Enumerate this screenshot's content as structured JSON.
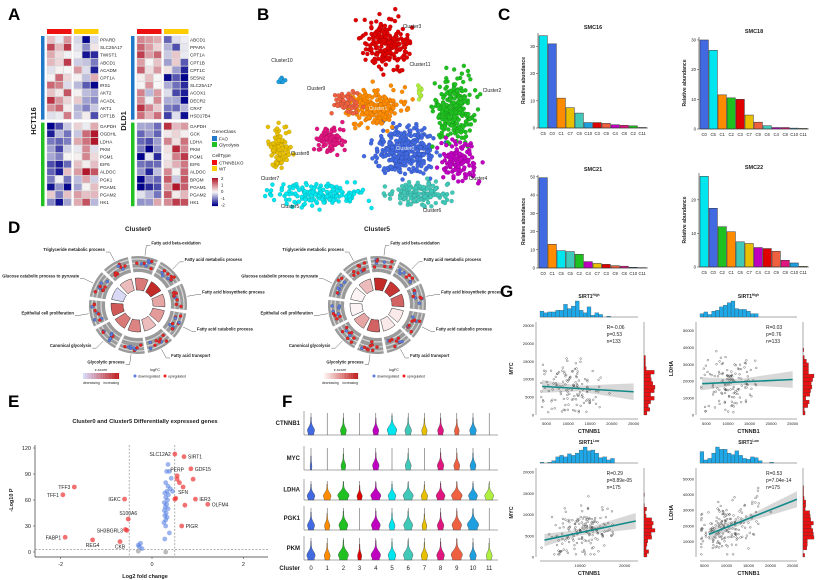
{
  "panels": {
    "A": "A",
    "B": "B",
    "C": "C",
    "D": "D",
    "E": "E",
    "F": "F",
    "G": "G"
  },
  "heatmap": {
    "blocks": [
      {
        "cell_line": "HCT116",
        "genes": [
          "PPARD",
          "SLC25A17",
          "TWIST1",
          "ABCD1",
          "ACADM",
          "CPT1A",
          "IRS1",
          "AKT2",
          "ACADL",
          "AKT1",
          "CPT1B",
          "GAPDH",
          "OGDHL",
          "LDHA",
          "PKM",
          "PGM1",
          "EIF6",
          "ALDOC",
          "PGK1",
          "PGAM1",
          "PGAM2",
          "HK1"
        ]
      },
      {
        "cell_line": "DLD1",
        "genes": [
          "ABCD1",
          "PPARA",
          "CPT1A",
          "CPT1B",
          "CPT1C",
          "SESN2",
          "SLC25A17",
          "ACOX1",
          "DECR2",
          "CRAT",
          "HSD17B4",
          "GAPDH",
          "GCK",
          "LDHA",
          "PKM",
          "PGM1",
          "EIF6",
          "ALDOC",
          "BPGM",
          "PGAM1",
          "PGAM2",
          "HK1"
        ]
      }
    ],
    "gene_class_title": "GeneClass",
    "gene_classes": [
      {
        "name": "FAO",
        "color": "#1f78c8"
      },
      {
        "name": "Glycolysis",
        "color": "#22c022"
      }
    ],
    "cell_type_title": "CellType",
    "cell_types": [
      {
        "name": "CTNNB1KO",
        "color": "#ee1111"
      },
      {
        "name": "WT",
        "color": "#ffcc00"
      }
    ],
    "scale_ticks": [
      "2",
      "1",
      "0",
      "-1",
      "-2"
    ],
    "colors": {
      "high": "#b2182b",
      "mid": "#f7f7f7",
      "low": "#00008b"
    }
  },
  "umap": {
    "clusters": [
      {
        "id": 0,
        "label": "Cluster0",
        "color": "#4169e1"
      },
      {
        "id": 1,
        "label": "Cluster1",
        "color": "#ff8c00"
      },
      {
        "id": 2,
        "label": "Cluster2",
        "color": "#1fc01f"
      },
      {
        "id": 3,
        "label": "Cluster3",
        "color": "#e00000"
      },
      {
        "id": 4,
        "label": "Cluster4",
        "color": "#c000c0"
      },
      {
        "id": 5,
        "label": "Cluster5",
        "color": "#00e5ee"
      },
      {
        "id": 6,
        "label": "Cluster6",
        "color": "#40c8b8"
      },
      {
        "id": 7,
        "label": "Cluster7",
        "color": "#e8c000"
      },
      {
        "id": 8,
        "label": "Cluster8",
        "color": "#e0157f"
      },
      {
        "id": 9,
        "label": "Cluster9",
        "color": "#ee6040"
      },
      {
        "id": 10,
        "label": "Cluster10",
        "color": "#1e9fe0"
      },
      {
        "id": 11,
        "label": "Cluster11",
        "color": "#b0f040"
      }
    ]
  },
  "chart_data": [
    {
      "type": "bar",
      "title": "SMC16",
      "ylabel": "Relative abundance",
      "ylim": [
        0,
        35
      ],
      "yticks": [
        0,
        10,
        20,
        30
      ],
      "categories": [
        "C5",
        "C0",
        "C1",
        "C7",
        "C6",
        "C10",
        "C3",
        "C9",
        "C4",
        "C8",
        "C2",
        "C11"
      ],
      "values": [
        34,
        31,
        11,
        7.5,
        5.5,
        2,
        2,
        1.7,
        1.2,
        1,
        0.8,
        0.2
      ]
    },
    {
      "type": "bar",
      "title": "SMC18",
      "ylabel": "Relative abundance",
      "ylim": [
        0,
        31
      ],
      "yticks": [
        0,
        10,
        20,
        30
      ],
      "categories": [
        "C0",
        "C5",
        "C1",
        "C2",
        "C3",
        "C7",
        "C9",
        "C6",
        "C4",
        "C8",
        "C10",
        "C11"
      ],
      "values": [
        30,
        26.5,
        11.5,
        10.5,
        10,
        4.7,
        2.3,
        1.1,
        0.5,
        0.5,
        0.3,
        0.2
      ]
    },
    {
      "type": "bar",
      "title": "SMC21",
      "ylabel": "Relative abundance",
      "ylim": [
        0,
        51
      ],
      "yticks": [
        0,
        10,
        20,
        30,
        40,
        50
      ],
      "categories": [
        "C0",
        "C1",
        "C5",
        "C6",
        "C2",
        "C4",
        "C7",
        "C3",
        "C9",
        "C8",
        "C10",
        "C11"
      ],
      "values": [
        49.5,
        13,
        9.5,
        9,
        7.5,
        3.5,
        2.5,
        2,
        1.3,
        1,
        0.4,
        0.2
      ]
    },
    {
      "type": "bar",
      "title": "SMC22",
      "ylabel": "Relative abundance",
      "ylim": [
        0,
        28
      ],
      "yticks": [
        0,
        10,
        20
      ],
      "categories": [
        "C5",
        "C0",
        "C2",
        "C1",
        "C6",
        "C7",
        "C4",
        "C3",
        "C9",
        "C8",
        "C10",
        "C11"
      ],
      "values": [
        27,
        17.5,
        12,
        10.5,
        7.5,
        7,
        5.8,
        5.5,
        4.7,
        2,
        1.2,
        0.2
      ]
    },
    {
      "type": "scatter",
      "title": "Cluster0 and Cluster5 Differentially expressed genes",
      "xlabel": "Log2 fold change",
      "ylabel": "-Log10 P",
      "xlim": [
        -2.5,
        2.5
      ],
      "ylim": [
        0,
        120
      ],
      "xticks": [
        -2,
        0,
        2
      ],
      "yticks": [
        0,
        30,
        60,
        90,
        120
      ],
      "labeled_points": [
        {
          "gene": "TFF3",
          "x": -1.7,
          "y": 75
        },
        {
          "gene": "TFF1",
          "x": -1.95,
          "y": 66
        },
        {
          "gene": "IGKC",
          "x": -0.6,
          "y": 61
        },
        {
          "gene": "S100A6",
          "x": -0.52,
          "y": 38
        },
        {
          "gene": "SH3BGRL3",
          "x": -0.55,
          "y": 25
        },
        {
          "gene": "FABP1",
          "x": -1.9,
          "y": 17
        },
        {
          "gene": "REG4",
          "x": -1.3,
          "y": 14
        },
        {
          "gene": "CKB",
          "x": -0.7,
          "y": 12
        },
        {
          "gene": "SLC12A2",
          "x": 0.5,
          "y": 113
        },
        {
          "gene": "SIRT1",
          "x": 0.7,
          "y": 110
        },
        {
          "gene": "GDF15",
          "x": 0.85,
          "y": 96
        },
        {
          "gene": "PERP",
          "x": 0.55,
          "y": 88
        },
        {
          "gene": "SFN",
          "x": 0.68,
          "y": 75
        },
        {
          "gene": "IER3",
          "x": 0.95,
          "y": 61
        },
        {
          "gene": "OLFM4",
          "x": 1.22,
          "y": 55
        },
        {
          "gene": "PIGR",
          "x": 0.65,
          "y": 30
        }
      ],
      "other_up": [
        [
          0.55,
          84
        ],
        [
          0.6,
          80
        ],
        [
          0.52,
          62
        ],
        [
          0.72,
          54
        ],
        [
          0.9,
          84
        ],
        [
          -0.58,
          26
        ],
        [
          0.5,
          61
        ]
      ],
      "other_down": [
        [
          0.35,
          101
        ],
        [
          0.38,
          93
        ],
        [
          0.32,
          93
        ],
        [
          0.42,
          85
        ],
        [
          0.3,
          80
        ],
        [
          0.35,
          76
        ],
        [
          0.4,
          73
        ],
        [
          0.33,
          70
        ],
        [
          0.45,
          70
        ],
        [
          0.28,
          68
        ],
        [
          0.36,
          66
        ],
        [
          0.3,
          63
        ],
        [
          0.34,
          60
        ],
        [
          0.27,
          57
        ],
        [
          0.32,
          55
        ],
        [
          0.29,
          52
        ],
        [
          0.35,
          50
        ],
        [
          0.27,
          48
        ],
        [
          0.31,
          45
        ],
        [
          0.28,
          42
        ],
        [
          0.33,
          40
        ],
        [
          0.3,
          37
        ],
        [
          0.26,
          34
        ],
        [
          0.3,
          30
        ],
        [
          0.38,
          22
        ],
        [
          0.28,
          15
        ],
        [
          -0.25,
          10
        ],
        [
          -0.3,
          8
        ],
        [
          -0.28,
          6
        ],
        [
          -0.22,
          4
        ]
      ],
      "other_ns": [
        [
          -0.3,
          1
        ],
        [
          0.3,
          0
        ]
      ],
      "thresholds": {
        "x": [
          -0.5,
          0.5
        ],
        "y": 3
      }
    },
    {
      "type": "violin",
      "ylabel_genes": [
        "CTNNB1",
        "MYC",
        "LDHA",
        "PGK1",
        "PKM"
      ],
      "xlabel": "Cluster",
      "categories": [
        "0",
        "1",
        "2",
        "3",
        "4",
        "5",
        "6",
        "7",
        "8",
        "9",
        "10",
        "11"
      ],
      "relative_width": [
        [
          0.55,
          0.05,
          0.45,
          0.05,
          0.45,
          0.75,
          0.5,
          0.4,
          0.45,
          0.35,
          0.5,
          0.05
        ],
        [
          0.1,
          0.05,
          0.35,
          0.05,
          0.5,
          0.05,
          0.45,
          0.05,
          0.5,
          0.45,
          0.45,
          0.05
        ],
        [
          0.6,
          0.6,
          0.9,
          0.4,
          0.8,
          0.6,
          0.8,
          0.5,
          0.7,
          0.85,
          0.7,
          0.7
        ],
        [
          0.55,
          0.4,
          0.7,
          0.05,
          0.7,
          0.45,
          0.7,
          0.35,
          0.5,
          0.75,
          0.9,
          0.05
        ],
        [
          0.65,
          0.45,
          0.8,
          0.3,
          0.75,
          0.6,
          0.75,
          0.5,
          0.6,
          0.9,
          0.5,
          0.45
        ]
      ]
    },
    {
      "type": "scatter",
      "title": "SIRT1",
      "title_sup": "High",
      "xlabel": "CTNNB1",
      "ylabel": "MYC",
      "stats": [
        "R=-0.06",
        "p=0.53",
        "n=133"
      ],
      "xlim": [
        3500,
        26000
      ],
      "ylim": [
        0,
        26000
      ],
      "xticks": [
        5000,
        10000,
        15000,
        20000,
        25000
      ],
      "yticks": [
        0,
        5000,
        10000,
        15000,
        20000,
        25000
      ],
      "fit": [
        [
          4000,
          8000
        ],
        [
          25000,
          6500
        ]
      ],
      "n": 133
    },
    {
      "type": "scatter",
      "title": "SIRT1",
      "title_sup": "High",
      "xlabel": "CTNNB1",
      "ylabel": "LDHA",
      "stats": [
        "R=0.03",
        "p=0.76",
        "n=133"
      ],
      "xlim": [
        3500,
        26000
      ],
      "ylim": [
        0,
        55000
      ],
      "xticks": [
        5000,
        10000,
        15000,
        20000,
        25000
      ],
      "yticks": [
        0,
        10000,
        20000,
        30000,
        40000,
        50000
      ],
      "fit": [
        [
          4000,
          18500
        ],
        [
          25000,
          21000
        ]
      ],
      "n": 133
    },
    {
      "type": "scatter",
      "title": "SIRT1",
      "title_sup": "Low",
      "xlabel": "CTNNB1",
      "ylabel": "MYC",
      "stats": [
        "R=0.29",
        "p=8.89e-05",
        "n=175"
      ],
      "xlim": [
        1000,
        23000
      ],
      "ylim": [
        0,
        21000
      ],
      "xticks": [
        10000,
        20000
      ],
      "yticks": [
        0,
        5000,
        10000,
        15000,
        20000
      ],
      "fit": [
        [
          2000,
          4000
        ],
        [
          22500,
          8500
        ]
      ],
      "n": 175
    },
    {
      "type": "scatter",
      "title": "SIRT1",
      "title_sup": "Low",
      "xlabel": "CTNNB1",
      "ylabel": "LDHA",
      "stats": [
        "R=0.53",
        "p=7.04e-14",
        "n=175"
      ],
      "xlim": [
        4000,
        26000
      ],
      "ylim": [
        0,
        57000
      ],
      "xticks": [
        5000,
        10000,
        15000,
        20000,
        25000
      ],
      "yticks": [
        10000,
        20000,
        30000,
        40000,
        50000
      ],
      "fit": [
        [
          6000,
          14500
        ],
        [
          26000,
          37000
        ]
      ],
      "n": 175
    }
  ],
  "go_circle": {
    "terms": [
      "Fatty acid beta-oxidation",
      "Fatty acid metabolic process",
      "Fatty acid biosynthetic process",
      "Fatty acid catabolic process",
      "Fatty acid transport",
      "Glycolytic process",
      "Canonical glycolysis",
      "Epithelial cell proliferation",
      "Glucose catabolic process to pyruvate",
      "Triglyceride metabolic process"
    ],
    "plots": [
      {
        "title": "Cluster0",
        "zscore": [
          0.6,
          0.95,
          0.4,
          0.45,
          0.3,
          0.55,
          0.6,
          0.75,
          -0.3,
          0.3
        ]
      },
      {
        "title": "Cluster5",
        "zscore": [
          0.95,
          0.9,
          0.7,
          0.1,
          0.1,
          0.7,
          0.4,
          0.05,
          0.05,
          0.3
        ]
      }
    ],
    "legend": {
      "zscore": "z-score",
      "decreasing": "decreasing",
      "increasing": "increasing",
      "logfc": "logFC",
      "down": "downregulated",
      "up": "upregulated"
    },
    "colors": {
      "up": "#ee2222",
      "down": "#5a7de0"
    }
  }
}
